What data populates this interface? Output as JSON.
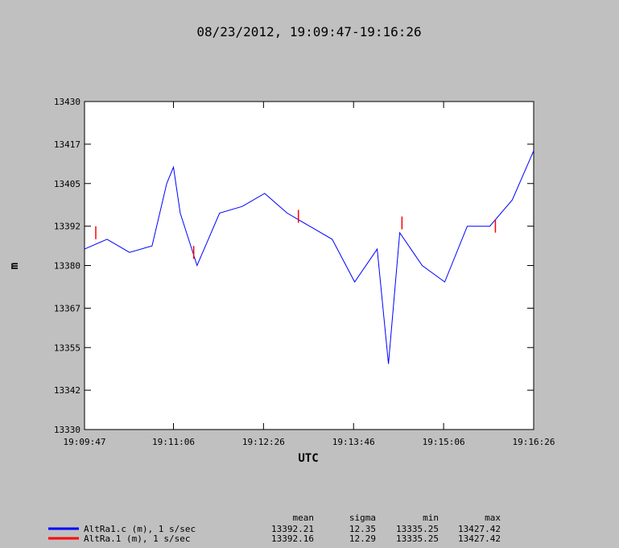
{
  "chart_data": {
    "type": "line",
    "title": "08/23/2012, 19:09:47-19:16:26",
    "xlabel": "UTC",
    "ylabel": "m",
    "xlim": [
      "19:09:47",
      "19:16:26"
    ],
    "ylim": [
      13330,
      13430
    ],
    "x_ticks": [
      "19:09:47",
      "19:11:06",
      "19:12:26",
      "19:13:46",
      "19:15:06",
      "19:16:26"
    ],
    "y_ticks": [
      "13430",
      "13417",
      "13405",
      "13392",
      "13380",
      "13367",
      "13355",
      "13342",
      "13330"
    ],
    "grid": false,
    "series": [
      {
        "name": "AltRa1.c (m), 1 s/sec",
        "color": "#0000ff",
        "x": [
          "19:09:47",
          "19:10:07",
          "19:10:27",
          "19:10:47",
          "19:11:00",
          "19:11:06",
          "19:11:12",
          "19:11:27",
          "19:11:47",
          "19:12:07",
          "19:12:27",
          "19:12:47",
          "19:13:07",
          "19:13:27",
          "19:13:47",
          "19:14:07",
          "19:14:17",
          "19:14:27",
          "19:14:47",
          "19:15:07",
          "19:15:27",
          "19:15:47",
          "19:16:07",
          "19:16:26"
        ],
        "y": [
          13385,
          13388,
          13384,
          13386,
          13405,
          13410,
          13396,
          13380,
          13396,
          13398,
          13402,
          13396,
          13392,
          13388,
          13375,
          13385,
          13350,
          13390,
          13380,
          13375,
          13392,
          13392,
          13400,
          13415
        ]
      },
      {
        "name": "AltRa.1 (m), 1 s/sec",
        "color": "#ff0000",
        "x": [
          "19:09:57",
          "19:11:24",
          "19:12:57",
          "19:14:29",
          "19:15:52"
        ],
        "y": [
          13390,
          13384,
          13395,
          13393,
          13392
        ]
      }
    ],
    "stats_table": {
      "headers": [
        "mean",
        "sigma",
        "min",
        "max"
      ],
      "rows": [
        {
          "label": "AltRa1.c (m), 1 s/sec",
          "color": "#0000ff",
          "values": [
            "13392.21",
            "12.35",
            "13335.25",
            "13427.42"
          ]
        },
        {
          "label": "AltRa.1 (m), 1 s/sec",
          "color": "#ff0000",
          "values": [
            "13392.16",
            "12.29",
            "13335.25",
            "13427.42"
          ]
        }
      ]
    }
  }
}
